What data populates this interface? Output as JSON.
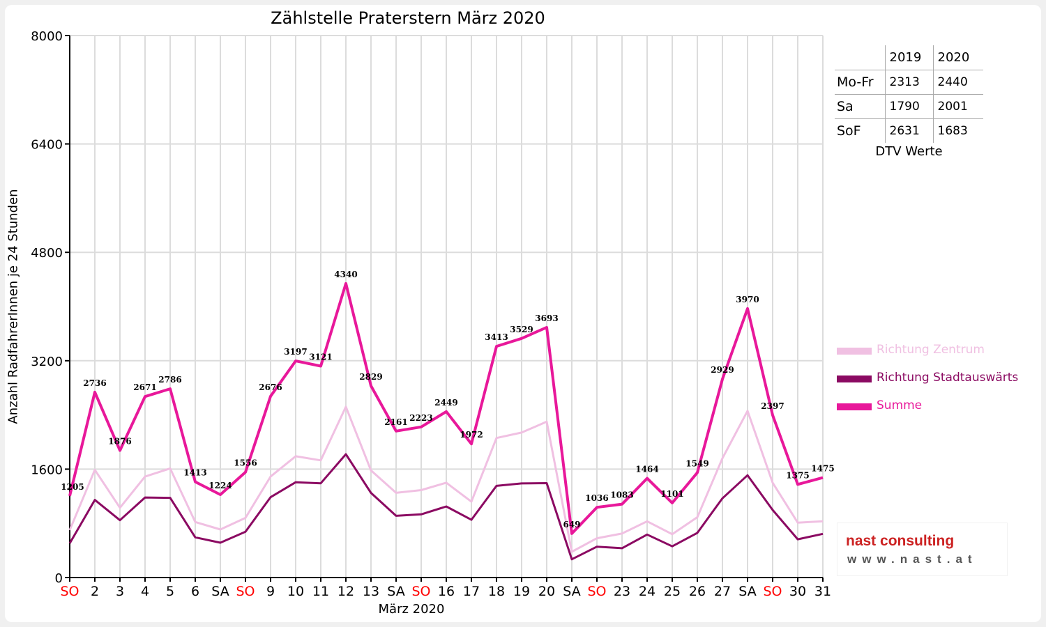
{
  "chart_data": {
    "type": "line",
    "title": "Zählstelle Praterstern März 2020",
    "xlabel": "März 2020",
    "ylabel": "Anzahl RadfahrerInnen je 24 Stunden",
    "ylim": [
      0,
      8000
    ],
    "yticks": [
      "0",
      "1600",
      "3200",
      "4800",
      "6400",
      "8000"
    ],
    "grid": true,
    "legend_position": "right",
    "categories": [
      "SO",
      "2",
      "3",
      "4",
      "5",
      "6",
      "SA",
      "SO",
      "9",
      "10",
      "11",
      "12",
      "13",
      "SA",
      "SO",
      "16",
      "17",
      "18",
      "19",
      "20",
      "SA",
      "SO",
      "23",
      "24",
      "25",
      "26",
      "27",
      "SA",
      "SO",
      "30",
      "31"
    ],
    "weekend_color": "#ff0000",
    "weekend_categories": [
      "SO"
    ],
    "series": [
      {
        "name": "Richtung Zentrum",
        "color": "#f0c0e2",
        "values": [
          700,
          1590,
          1030,
          1490,
          1610,
          820,
          710,
          880,
          1490,
          1790,
          1730,
          2520,
          1580,
          1250,
          1290,
          1400,
          1120,
          2060,
          2140,
          2300,
          380,
          580,
          650,
          830,
          640,
          890,
          1760,
          2460,
          1400,
          810,
          830
        ]
      },
      {
        "name": "Richtung Stadtauswärts",
        "color": "#8b0a62",
        "values": [
          505,
          1146,
          846,
          1181,
          1176,
          593,
          514,
          676,
          1186,
          1407,
          1391,
          1820,
          1249,
          911,
          933,
          1049,
          852,
          1353,
          1389,
          1393,
          269,
          456,
          433,
          634,
          461,
          659,
          1169,
          1510,
          997,
          565,
          645
        ]
      },
      {
        "name": "Summe",
        "color": "#e8189a",
        "values": [
          1205,
          2736,
          1876,
          2671,
          2786,
          1413,
          1224,
          1556,
          2676,
          3197,
          3121,
          4340,
          2829,
          2161,
          2223,
          2449,
          1972,
          3413,
          3529,
          3693,
          649,
          1036,
          1083,
          1464,
          1101,
          1549,
          2929,
          3970,
          2397,
          1375,
          1475
        ]
      }
    ],
    "data_labels": [
      "1205",
      "2736",
      "1876",
      "2671",
      "2786",
      "1413",
      "1224",
      "1556",
      "2676",
      "3197",
      "3121",
      "4340",
      "2829",
      "2161",
      "2223",
      "2449",
      "1972",
      "3413",
      "3529",
      "3693",
      "649",
      "1036",
      "1083",
      "1464",
      "1101",
      "1549",
      "2929",
      "3970",
      "2397",
      "1375",
      "1475"
    ]
  },
  "dtv_table": {
    "headers": [
      "",
      "2019",
      "2020"
    ],
    "rows": [
      {
        "label": "Mo-Fr",
        "v2019": "2313",
        "v2020": "2440"
      },
      {
        "label": "Sa",
        "v2019": "1790",
        "v2020": "2001"
      },
      {
        "label": "SoF",
        "v2019": "2631",
        "v2020": "1683"
      }
    ],
    "caption": "DTV Werte"
  },
  "logo": {
    "name": "nast consulting",
    "url": "www.nast.at",
    "name_color": "#cc2222",
    "url_color": "#555555"
  }
}
